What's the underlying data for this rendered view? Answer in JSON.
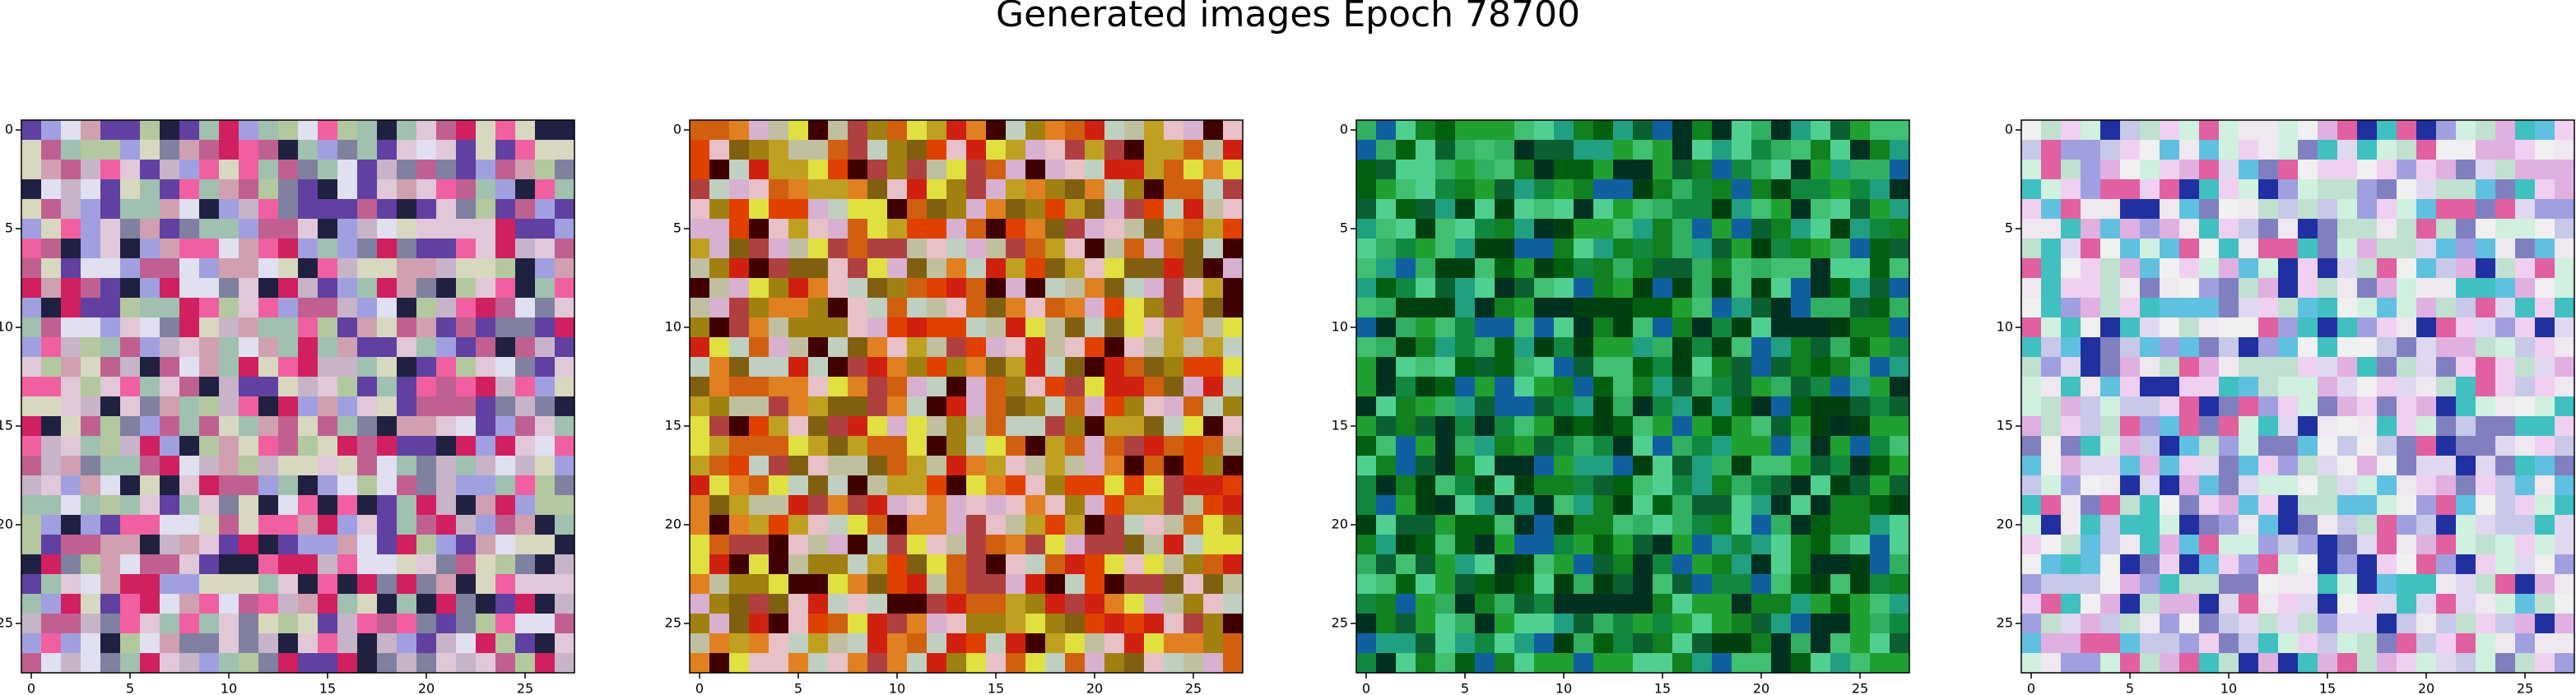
{
  "title": "Generated images Epoch 78700",
  "chart_data": [
    {
      "type": "image",
      "xlim": [
        -0.5,
        27.5
      ],
      "ylim": [
        27.5,
        -0.5
      ],
      "xticks": [
        0,
        5,
        10,
        15,
        20,
        25
      ],
      "yticks": [
        0,
        5,
        10,
        15,
        20,
        25
      ],
      "colors": [
        "#c8b4c8",
        "#e0c8d8",
        "#b4c8a0",
        "#f060a0",
        "#a0a0e0",
        "#d8d8c0",
        "#c06090",
        "#8080a0",
        "#e0e0f0",
        "#6040a0",
        "#d02060",
        "#a0c0b0",
        "#202040",
        "#d0a0b0"
      ]
    },
    {
      "type": "image",
      "xlim": [
        -0.5,
        27.5
      ],
      "ylim": [
        27.5,
        -0.5
      ],
      "xticks": [
        0,
        5,
        10,
        15,
        20,
        25
      ],
      "yticks": [
        0,
        5,
        10,
        15,
        20,
        25
      ],
      "colors": [
        "#d06010",
        "#e08020",
        "#c0a020",
        "#a08010",
        "#d02010",
        "#e8c0c8",
        "#c0c0a0",
        "#806010",
        "#d8b0d0",
        "#b04040",
        "#e0e040",
        "#400000",
        "#c0d0c0",
        "#e04000"
      ]
    },
    {
      "type": "image",
      "xlim": [
        -0.5,
        27.5
      ],
      "ylim": [
        27.5,
        -0.5
      ],
      "xticks": [
        0,
        5,
        10,
        15,
        20,
        25
      ],
      "yticks": [
        0,
        5,
        10,
        15,
        20,
        25
      ],
      "colors": [
        "#108020",
        "#20a030",
        "#006010",
        "#40c070",
        "#108840",
        "#30b060",
        "#004010",
        "#0a6030",
        "#20a080",
        "#003020",
        "#1060a0",
        "#50d090"
      ]
    },
    {
      "type": "image",
      "xlim": [
        -0.5,
        27.5
      ],
      "ylim": [
        27.5,
        -0.5
      ],
      "xticks": [
        0,
        5,
        10,
        15,
        20,
        25
      ],
      "yticks": [
        0,
        5,
        10,
        15,
        20,
        25
      ],
      "colors": [
        "#e0d8f0",
        "#f0e8f0",
        "#c8c8e8",
        "#e0b0e0",
        "#a0a0e0",
        "#60c0e0",
        "#f0f0f0",
        "#d0f0e0",
        "#8080c0",
        "#40c0c0",
        "#2030a0",
        "#e060a0",
        "#c0e0d0",
        "#f0d0f0"
      ]
    }
  ]
}
